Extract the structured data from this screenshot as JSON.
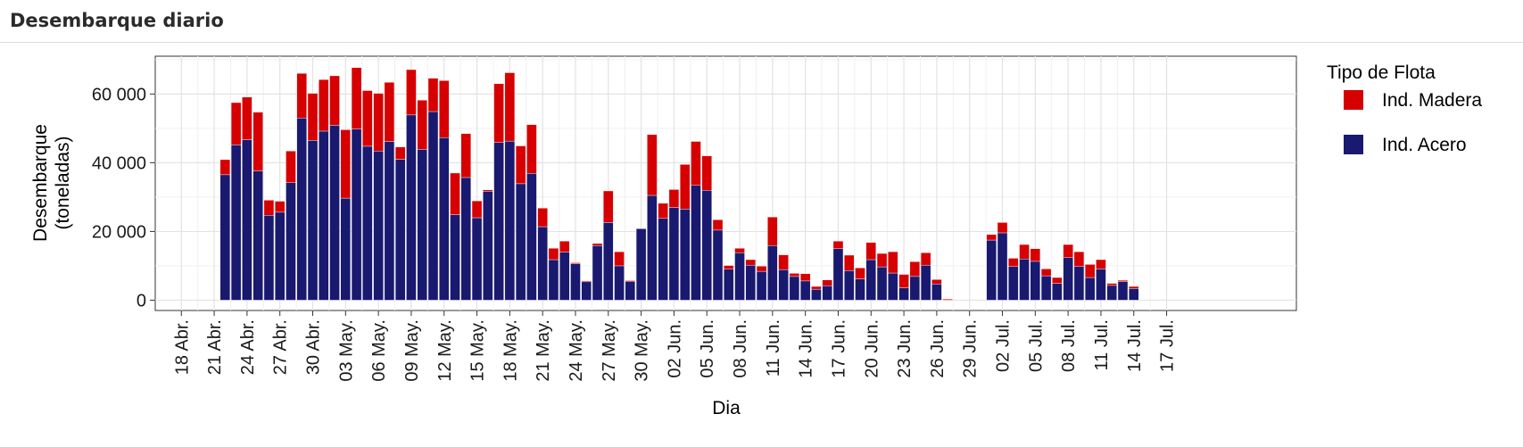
{
  "header": {
    "title": "Desembarque diario"
  },
  "chart_data": {
    "type": "bar",
    "stacked": true,
    "xlabel": "Dia",
    "ylabel": "Desembarque",
    "ylabel_line2": "(toneladas)",
    "ylim": [
      -3000,
      71000
    ],
    "yticks": [
      0,
      20000,
      40000,
      60000
    ],
    "ytick_labels": [
      "0",
      "20 000",
      "40 000",
      "60 000"
    ],
    "x_start_date": "2024-04-17",
    "x_tick_labels": [
      "18 Abr.",
      "21 Abr.",
      "24 Abr.",
      "27 Abr.",
      "30 Abr.",
      "03 May.",
      "06 May.",
      "09 May.",
      "12 May.",
      "15 May.",
      "18 May.",
      "21 May.",
      "24 May.",
      "27 May.",
      "30 May.",
      "02 Jun.",
      "05 Jun.",
      "08 Jun.",
      "11 Jun.",
      "14 Jun.",
      "17 Jun.",
      "20 Jun.",
      "23 Jun.",
      "26 Jun.",
      "29 Jun.",
      "02 Jul.",
      "05 Jul.",
      "08 Jul.",
      "11 Jul.",
      "14 Jul.",
      "17 Jul."
    ],
    "x": [
      "22 Abr.",
      "23 Abr.",
      "24 Abr.",
      "25 Abr.",
      "26 Abr.",
      "27 Abr.",
      "28 Abr.",
      "29 Abr.",
      "30 Abr.",
      "01 May.",
      "02 May.",
      "03 May.",
      "04 May.",
      "05 May.",
      "06 May.",
      "07 May.",
      "08 May.",
      "09 May.",
      "10 May.",
      "11 May.",
      "12 May.",
      "13 May.",
      "14 May.",
      "15 May.",
      "16 May.",
      "17 May.",
      "18 May.",
      "19 May.",
      "20 May.",
      "21 May.",
      "22 May.",
      "23 May.",
      "24 May.",
      "25 May.",
      "26 May.",
      "27 May.",
      "28 May.",
      "29 May.",
      "30 May.",
      "31 May.",
      "01 Jun.",
      "02 Jun.",
      "03 Jun.",
      "04 Jun.",
      "05 Jun.",
      "06 Jun.",
      "07 Jun.",
      "08 Jun.",
      "09 Jun.",
      "10 Jun.",
      "11 Jun.",
      "12 Jun.",
      "13 Jun.",
      "14 Jun.",
      "15 Jun.",
      "16 Jun.",
      "17 Jun.",
      "18 Jun.",
      "19 Jun.",
      "20 Jun.",
      "21 Jun.",
      "22 Jun.",
      "23 Jun.",
      "24 Jun.",
      "25 Jun.",
      "26 Jun.",
      "27 Jun.",
      "28 Jun.",
      "29 Jun.",
      "30 Jun.",
      "01 Jul.",
      "02 Jul.",
      "03 Jul.",
      "04 Jul.",
      "05 Jul.",
      "06 Jul.",
      "07 Jul.",
      "08 Jul.",
      "09 Jul.",
      "10 Jul.",
      "11 Jul.",
      "12 Jul.",
      "13 Jul.",
      "14 Jul."
    ],
    "series": [
      {
        "name": "Ind. Acero",
        "color": "#191970",
        "values": [
          36500,
          45200,
          46700,
          37600,
          24700,
          25600,
          34200,
          53000,
          46500,
          49200,
          50900,
          29700,
          49800,
          44800,
          43400,
          46200,
          41000,
          53900,
          43900,
          54900,
          47300,
          24900,
          35700,
          24000,
          31700,
          45900,
          46300,
          33900,
          36900,
          21400,
          11800,
          14000,
          10600,
          5400,
          15900,
          22600,
          10000,
          5500,
          20800,
          30500,
          23800,
          27000,
          26500,
          33400,
          32000,
          20400,
          9000,
          13800,
          10200,
          8400,
          15900,
          8900,
          6900,
          5600,
          3200,
          4200,
          15000,
          8600,
          6200,
          11800,
          9700,
          7900,
          3600,
          6900,
          10200,
          4700,
          0,
          0,
          0,
          0,
          17500,
          19600,
          9800,
          12000,
          11300,
          7100,
          4900,
          12400,
          9800,
          6600,
          9100,
          4300,
          5400,
          3400
        ]
      },
      {
        "name": "Ind. Madera",
        "color": "#d60000",
        "values": [
          4400,
          12300,
          12400,
          17100,
          4400,
          3200,
          9200,
          13000,
          13700,
          15000,
          14400,
          19900,
          17900,
          16200,
          16800,
          17200,
          3600,
          13200,
          14300,
          9700,
          16600,
          12100,
          12800,
          4900,
          400,
          17100,
          19900,
          11000,
          14200,
          5400,
          3300,
          3200,
          300,
          200,
          600,
          9200,
          4100,
          200,
          0,
          17700,
          4400,
          5200,
          13000,
          12800,
          10000,
          3000,
          1100,
          1300,
          1600,
          1500,
          8300,
          4300,
          900,
          2100,
          800,
          1700,
          2200,
          4500,
          3200,
          5000,
          3900,
          6200,
          3900,
          4300,
          3600,
          1300,
          300,
          0,
          0,
          0,
          1600,
          3000,
          2400,
          4200,
          3700,
          2000,
          1700,
          3800,
          4300,
          3800,
          2700,
          600,
          400,
          600
        ]
      }
    ],
    "legend": {
      "title": "Tipo de Flota",
      "position": "right",
      "order": [
        "Ind. Madera",
        "Ind. Acero"
      ]
    },
    "grid": true
  }
}
